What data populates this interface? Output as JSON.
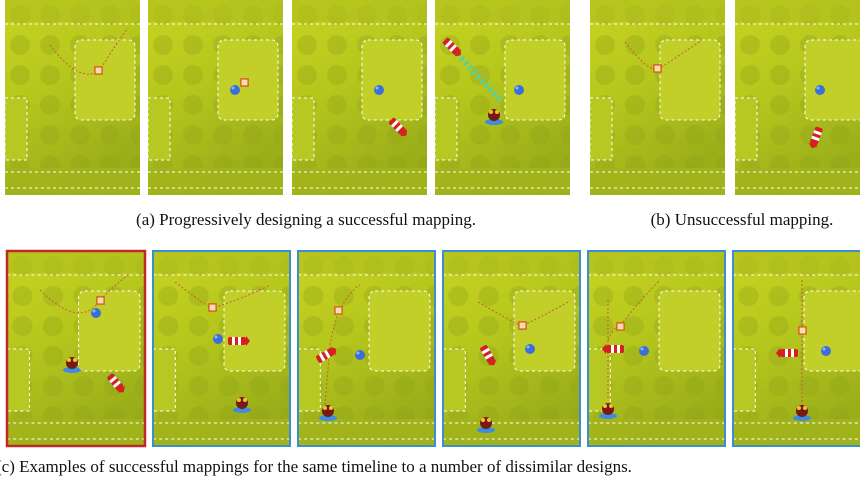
{
  "figure": {
    "captions": {
      "a": "(a) Progressively designing a successful mapping.",
      "b": "(b) Unsuccessful mapping.",
      "c": "(c) Examples of successful mappings for the same timeline to a number of dissimilar designs."
    }
  }
}
